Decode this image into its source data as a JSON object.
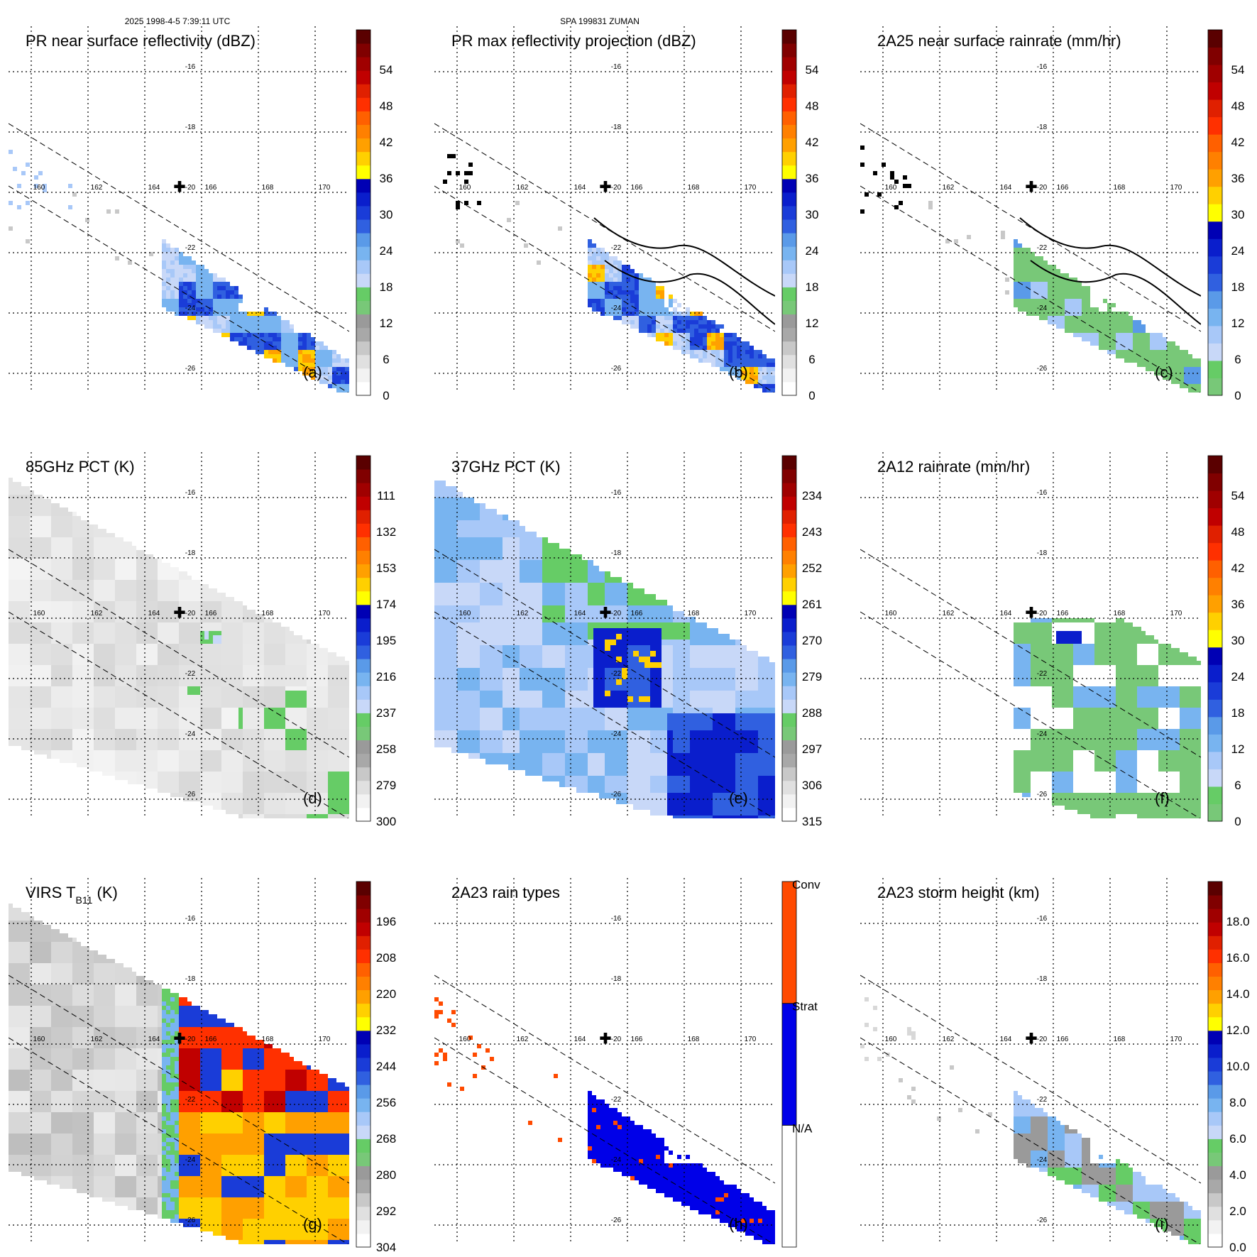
{
  "header": {
    "left": "2025 1998-4-5 7:39:11 UTC",
    "center": "SPA 199831 ZUMAN"
  },
  "map": {
    "lon_labels": [
      "160",
      "162",
      "164",
      "166",
      "168",
      "170"
    ],
    "lat_labels": [
      "-16",
      "-18",
      "-20",
      "-22",
      "-24",
      "-26"
    ],
    "marker": "✚"
  },
  "panels": [
    {
      "id": "a",
      "title": "PR near surface reflectivity (dBZ)",
      "letter": "(a)",
      "colorbar": {
        "labels": [
          "0",
          "6",
          "12",
          "18",
          "24",
          "30",
          "36",
          "42",
          "48",
          "54"
        ],
        "colors": [
          "#ffffff",
          "#f2f2f2",
          "#e0e0e0",
          "#c8c8c8",
          "#a8a8a8",
          "#9a9a9a",
          "#78c878",
          "#66cc66",
          "#c8d8f8",
          "#a8c8f8",
          "#78b4f0",
          "#5a9ae8",
          "#3060e0",
          "#1a3cd8",
          "#0a1ecc",
          "#0000b4",
          "#ffff00",
          "#ffd000",
          "#ffa000",
          "#ff8000",
          "#ff6000",
          "#ff3000",
          "#e02000",
          "#c00000",
          "#a00000",
          "#800000",
          "#5a0000"
        ]
      }
    },
    {
      "id": "b",
      "title": "PR max reflectivity projection (dBZ)",
      "letter": "(b)",
      "colorbar": {
        "labels": [
          "0",
          "6",
          "12",
          "18",
          "24",
          "30",
          "36",
          "42",
          "48",
          "54"
        ],
        "colors": [
          "#ffffff",
          "#f2f2f2",
          "#e0e0e0",
          "#c8c8c8",
          "#a8a8a8",
          "#9a9a9a",
          "#78c878",
          "#66cc66",
          "#c8d8f8",
          "#a8c8f8",
          "#78b4f0",
          "#5a9ae8",
          "#3060e0",
          "#1a3cd8",
          "#0a1ecc",
          "#0000b4",
          "#ffff00",
          "#ffd000",
          "#ffa000",
          "#ff8000",
          "#ff6000",
          "#ff3000",
          "#e02000",
          "#c00000",
          "#a00000",
          "#800000",
          "#5a0000"
        ]
      }
    },
    {
      "id": "c",
      "title": "2A25 near surface rainrate (mm/hr)",
      "letter": "(c)",
      "colorbar": {
        "labels": [
          "0",
          "6",
          "12",
          "18",
          "24",
          "30",
          "36",
          "42",
          "48",
          "54"
        ],
        "colors": [
          "#78c878",
          "#66cc66",
          "#c8d8f8",
          "#a8c8f8",
          "#78b4f0",
          "#5a9ae8",
          "#3060e0",
          "#1a3cd8",
          "#0a1ecc",
          "#0000b4",
          "#ffff00",
          "#ffd000",
          "#ffa000",
          "#ff8000",
          "#ff6000",
          "#ff3000",
          "#e02000",
          "#c00000",
          "#a00000",
          "#800000",
          "#5a0000"
        ]
      }
    },
    {
      "id": "d",
      "title": "85GHz PCT (K)",
      "letter": "(d)",
      "colorbar": {
        "labels": [
          "300",
          "279",
          "258",
          "237",
          "216",
          "195",
          "174",
          "153",
          "132",
          "111"
        ],
        "colors": [
          "#ffffff",
          "#f2f2f2",
          "#e0e0e0",
          "#c8c8c8",
          "#a8a8a8",
          "#9a9a9a",
          "#78c878",
          "#66cc66",
          "#c8d8f8",
          "#a8c8f8",
          "#78b4f0",
          "#5a9ae8",
          "#3060e0",
          "#1a3cd8",
          "#0a1ecc",
          "#0000b4",
          "#ffff00",
          "#ffd000",
          "#ffa000",
          "#ff8000",
          "#ff6000",
          "#ff3000",
          "#e02000",
          "#c00000",
          "#a00000",
          "#800000",
          "#5a0000"
        ]
      }
    },
    {
      "id": "e",
      "title": "37GHz PCT (K)",
      "letter": "(e)",
      "colorbar": {
        "labels": [
          "315",
          "306",
          "297",
          "288",
          "279",
          "270",
          "261",
          "252",
          "243",
          "234"
        ],
        "colors": [
          "#ffffff",
          "#f2f2f2",
          "#e0e0e0",
          "#c8c8c8",
          "#a8a8a8",
          "#9a9a9a",
          "#78c878",
          "#66cc66",
          "#c8d8f8",
          "#a8c8f8",
          "#78b4f0",
          "#5a9ae8",
          "#3060e0",
          "#1a3cd8",
          "#0a1ecc",
          "#0000b4",
          "#ffff00",
          "#ffd000",
          "#ffa000",
          "#ff8000",
          "#ff6000",
          "#ff3000",
          "#e02000",
          "#c00000",
          "#a00000",
          "#800000",
          "#5a0000"
        ]
      }
    },
    {
      "id": "f",
      "title": "2A12 rainrate (mm/hr)",
      "letter": "(f)",
      "colorbar": {
        "labels": [
          "0",
          "6",
          "12",
          "18",
          "24",
          "30",
          "36",
          "42",
          "48",
          "54"
        ],
        "colors": [
          "#78c878",
          "#66cc66",
          "#c8d8f8",
          "#a8c8f8",
          "#78b4f0",
          "#5a9ae8",
          "#3060e0",
          "#1a3cd8",
          "#0a1ecc",
          "#0000b4",
          "#ffff00",
          "#ffd000",
          "#ffa000",
          "#ff8000",
          "#ff6000",
          "#ff3000",
          "#e02000",
          "#c00000",
          "#a00000",
          "#800000",
          "#5a0000"
        ]
      }
    },
    {
      "id": "g",
      "title": "VIRS T",
      "title_sub": "B11",
      "title_suffix": " (K)",
      "letter": "(g)",
      "colorbar": {
        "labels": [
          "304",
          "292",
          "280",
          "268",
          "256",
          "244",
          "232",
          "220",
          "208",
          "196"
        ],
        "colors": [
          "#ffffff",
          "#f2f2f2",
          "#e0e0e0",
          "#c8c8c8",
          "#a8a8a8",
          "#9a9a9a",
          "#78c878",
          "#66cc66",
          "#c8d8f8",
          "#a8c8f8",
          "#78b4f0",
          "#5a9ae8",
          "#3060e0",
          "#1a3cd8",
          "#0a1ecc",
          "#0000b4",
          "#ffff00",
          "#ffd000",
          "#ffa000",
          "#ff8000",
          "#ff6000",
          "#ff3000",
          "#e02000",
          "#c00000",
          "#a00000",
          "#800000",
          "#5a0000"
        ]
      }
    },
    {
      "id": "h",
      "title": "2A23 rain types",
      "letter": "(h)",
      "colorbar": {
        "type": "categorical",
        "labels": [
          "N/A",
          "Strat",
          "Conv"
        ],
        "colors": [
          "#ffffff",
          "#0000e8",
          "#ff4a00"
        ]
      }
    },
    {
      "id": "i",
      "title": "2A23 storm height (km)",
      "letter": "(i)",
      "colorbar": {
        "labels": [
          "0.0",
          "2.0",
          "4.0",
          "6.0",
          "8.0",
          "10.0",
          "12.0",
          "14.0",
          "16.0",
          "18.0"
        ],
        "colors": [
          "#ffffff",
          "#f2f2f2",
          "#e0e0e0",
          "#c8c8c8",
          "#a8a8a8",
          "#9a9a9a",
          "#78c878",
          "#66cc66",
          "#c8d8f8",
          "#a8c8f8",
          "#78b4f0",
          "#5a9ae8",
          "#3060e0",
          "#1a3cd8",
          "#0a1ecc",
          "#0000b4",
          "#ffff00",
          "#ffd000",
          "#ffa000",
          "#ff8000",
          "#ff6000",
          "#ff3000",
          "#e02000",
          "#c00000",
          "#a00000",
          "#800000",
          "#5a0000"
        ]
      }
    }
  ],
  "chart_data": [
    {
      "type": "heatmap",
      "title": "PR near surface reflectivity (dBZ)",
      "x": [
        "160",
        "162",
        "164",
        "166",
        "168",
        "170"
      ],
      "y": [
        "-16",
        "-18",
        "-20",
        "-22",
        "-24",
        "-26"
      ],
      "colorbar_range": [
        0,
        60
      ]
    },
    {
      "type": "heatmap",
      "title": "PR max reflectivity projection (dBZ)",
      "x": [
        "160",
        "162",
        "164",
        "166",
        "168",
        "170"
      ],
      "y": [
        "-16",
        "-18",
        "-20",
        "-22",
        "-24",
        "-26"
      ],
      "colorbar_range": [
        0,
        60
      ]
    },
    {
      "type": "heatmap",
      "title": "2A25 near surface rainrate (mm/hr)",
      "x": [
        "160",
        "162",
        "164",
        "166",
        "168",
        "170"
      ],
      "y": [
        "-16",
        "-18",
        "-20",
        "-22",
        "-24",
        "-26"
      ],
      "colorbar_range": [
        0,
        60
      ]
    },
    {
      "type": "heatmap",
      "title": "85GHz PCT (K)",
      "x": [
        "160",
        "162",
        "164",
        "166",
        "168",
        "170"
      ],
      "y": [
        "-16",
        "-18",
        "-20",
        "-22",
        "-24",
        "-26"
      ],
      "colorbar_range": [
        300,
        90
      ]
    },
    {
      "type": "heatmap",
      "title": "37GHz PCT (K)",
      "x": [
        "160",
        "162",
        "164",
        "166",
        "168",
        "170"
      ],
      "y": [
        "-16",
        "-18",
        "-20",
        "-22",
        "-24",
        "-26"
      ],
      "colorbar_range": [
        315,
        225
      ]
    },
    {
      "type": "heatmap",
      "title": "2A12 rainrate (mm/hr)",
      "x": [
        "160",
        "162",
        "164",
        "166",
        "168",
        "170"
      ],
      "y": [
        "-16",
        "-18",
        "-20",
        "-22",
        "-24",
        "-26"
      ],
      "colorbar_range": [
        0,
        60
      ]
    },
    {
      "type": "heatmap",
      "title": "VIRS TB11 (K)",
      "x": [
        "160",
        "162",
        "164",
        "166",
        "168",
        "170"
      ],
      "y": [
        "-16",
        "-18",
        "-20",
        "-22",
        "-24",
        "-26"
      ],
      "colorbar_range": [
        304,
        184
      ]
    },
    {
      "type": "heatmap",
      "title": "2A23 rain types",
      "x": [
        "160",
        "162",
        "164",
        "166",
        "168",
        "170"
      ],
      "y": [
        "-16",
        "-18",
        "-20",
        "-22",
        "-24",
        "-26"
      ],
      "categories": [
        "N/A",
        "Strat",
        "Conv"
      ]
    },
    {
      "type": "heatmap",
      "title": "2A23 storm height (km)",
      "x": [
        "160",
        "162",
        "164",
        "166",
        "168",
        "170"
      ],
      "y": [
        "-16",
        "-18",
        "-20",
        "-22",
        "-24",
        "-26"
      ],
      "colorbar_range": [
        0,
        20
      ]
    }
  ]
}
